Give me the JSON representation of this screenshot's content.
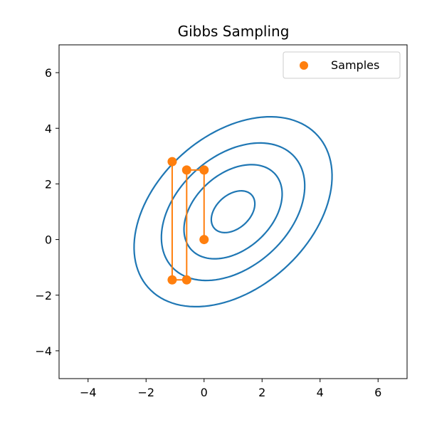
{
  "chart_data": {
    "type": "scatter",
    "title": "Gibbs Sampling",
    "xlabel": "",
    "ylabel": "",
    "xlim": [
      -5,
      7
    ],
    "ylim": [
      -5,
      7
    ],
    "x_ticks": [
      -4,
      -2,
      0,
      2,
      4,
      6
    ],
    "y_ticks": [
      -4,
      -2,
      0,
      2,
      4,
      6
    ],
    "x_tick_labels": [
      "−4",
      "−2",
      "0",
      "2",
      "4",
      "6"
    ],
    "y_tick_labels": [
      "−4",
      "−2",
      "0",
      "2",
      "4",
      "6"
    ],
    "grid": false,
    "legend": {
      "position": "upper right",
      "entries": [
        "Samples"
      ]
    },
    "colors": {
      "contour": "#1f77b4",
      "samples": "#ff7f0e",
      "axes": "#000000"
    },
    "contour": {
      "mean": [
        1,
        1
      ],
      "covariance": [
        [
          4,
          1.5
        ],
        [
          1.5,
          4
        ]
      ],
      "levels": [
        0.01,
        0.02,
        0.03,
        0.04,
        0.05
      ]
    },
    "series": [
      {
        "name": "Samples",
        "x": [
          0.0,
          0.0,
          -0.6,
          -0.6,
          -1.1,
          -1.1
        ],
        "y": [
          0.0,
          2.5,
          2.5,
          -1.45,
          -1.45,
          2.8
        ]
      }
    ]
  }
}
